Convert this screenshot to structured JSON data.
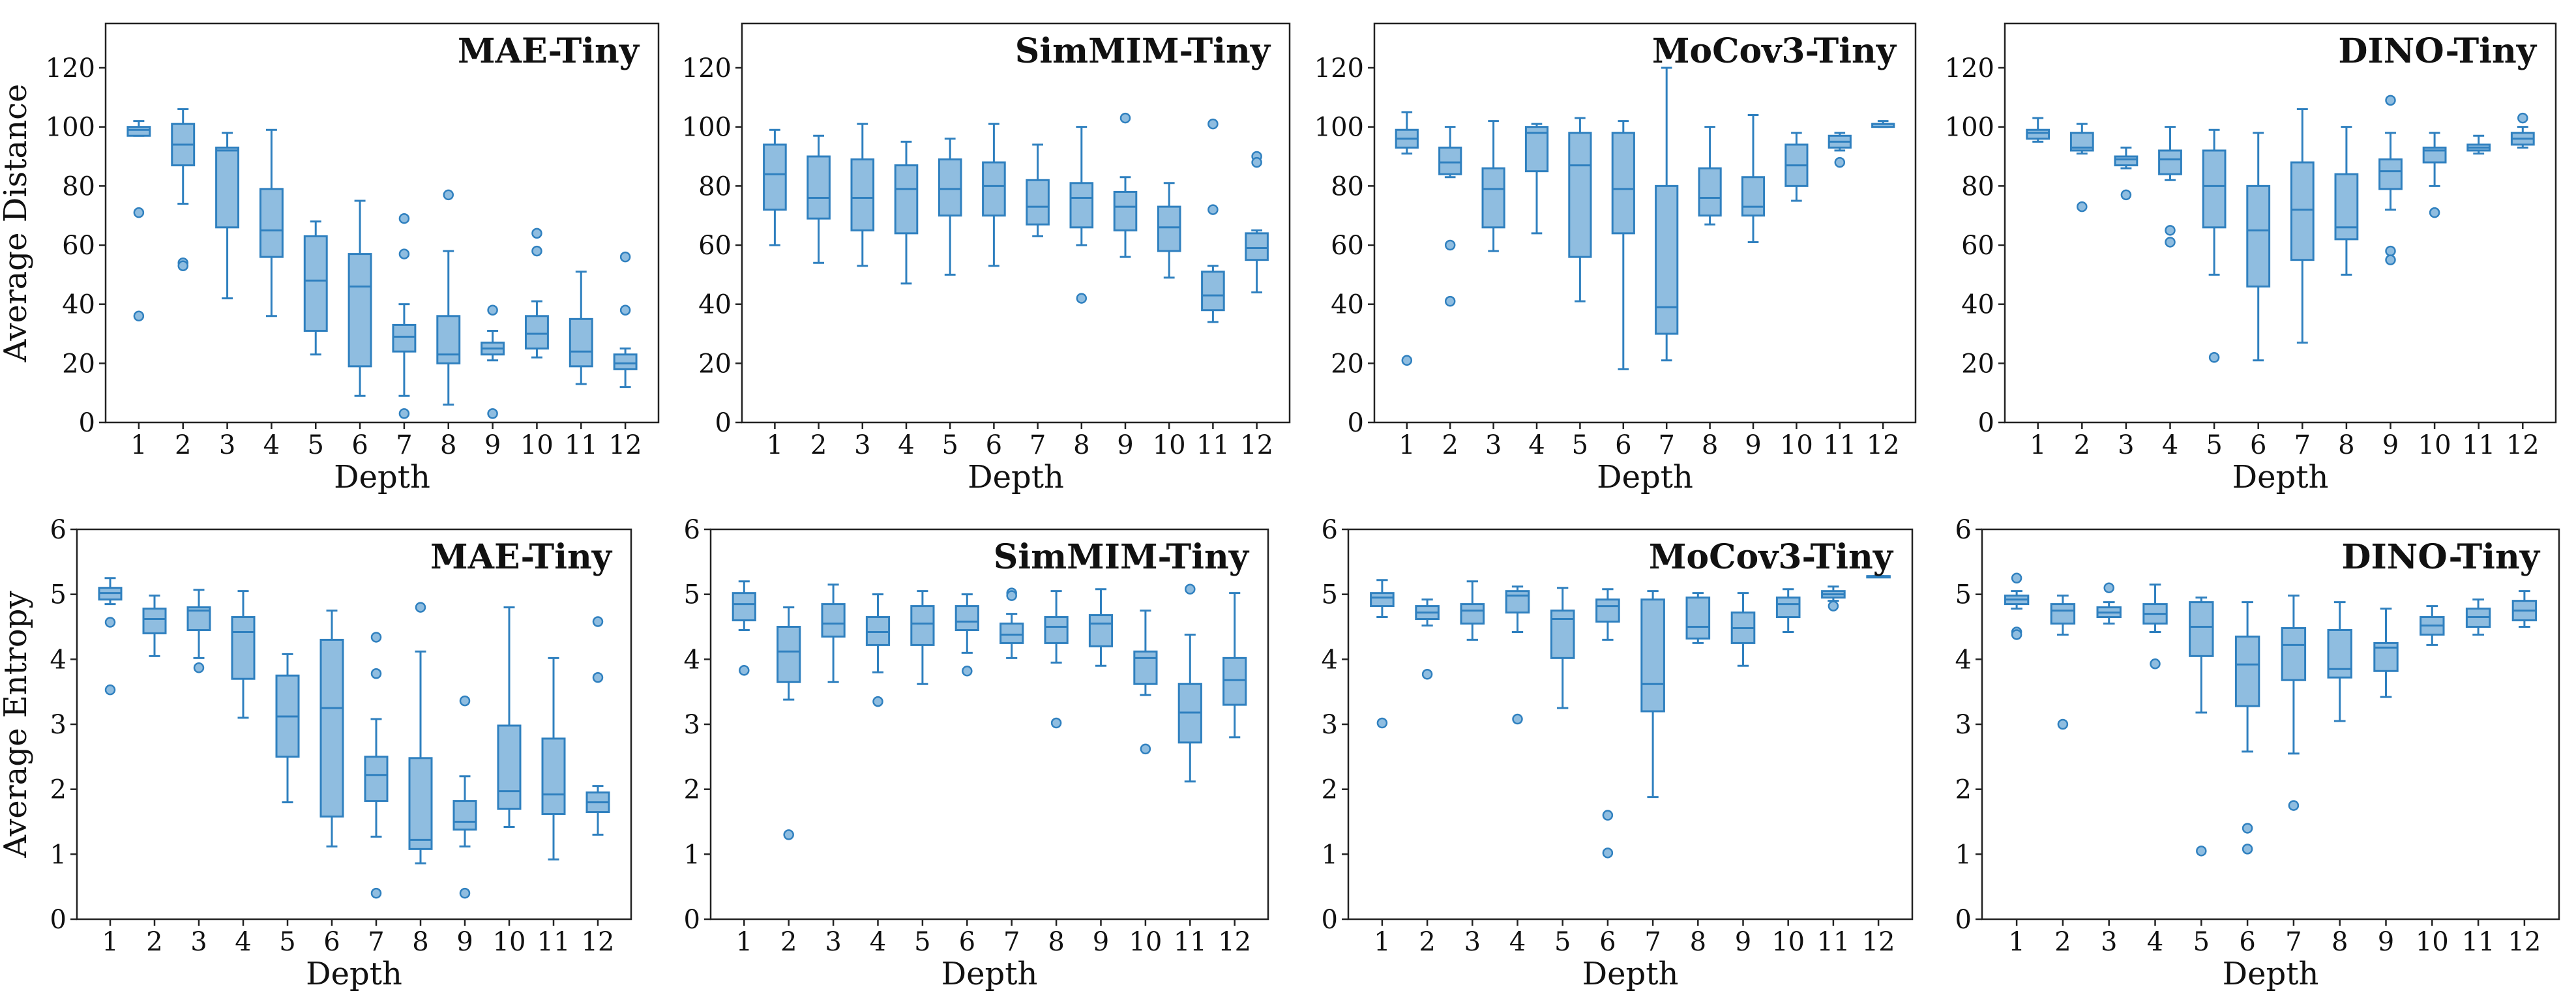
{
  "colors": {
    "box_fill": "#8fbde0",
    "box_edge": "#2f80bf",
    "flier_fill": "#8fbde0"
  },
  "chart_data": [
    {
      "type": "box",
      "title": "MAE-Tiny",
      "xlabel": "Depth",
      "ylabel": "Average Distance",
      "ylim": [
        0,
        135
      ],
      "yticks": [
        0,
        20,
        40,
        60,
        80,
        100,
        120
      ],
      "categories": [
        "1",
        "2",
        "3",
        "4",
        "5",
        "6",
        "7",
        "8",
        "9",
        "10",
        "11",
        "12"
      ],
      "boxes": [
        {
          "q1": 97,
          "med": 99,
          "q3": 100,
          "lo": 97,
          "hi": 102,
          "fliers": [
            71,
            36
          ]
        },
        {
          "q1": 87,
          "med": 94,
          "q3": 101,
          "lo": 74,
          "hi": 106,
          "fliers": [
            54,
            53
          ]
        },
        {
          "q1": 66,
          "med": 92,
          "q3": 93,
          "lo": 42,
          "hi": 98,
          "fliers": []
        },
        {
          "q1": 56,
          "med": 65,
          "q3": 79,
          "lo": 36,
          "hi": 99,
          "fliers": []
        },
        {
          "q1": 31,
          "med": 48,
          "q3": 63,
          "lo": 23,
          "hi": 68,
          "fliers": []
        },
        {
          "q1": 19,
          "med": 46,
          "q3": 57,
          "lo": 9,
          "hi": 75,
          "fliers": []
        },
        {
          "q1": 24,
          "med": 29,
          "q3": 33,
          "lo": 9,
          "hi": 40,
          "fliers": [
            69,
            57,
            3
          ]
        },
        {
          "q1": 20,
          "med": 23,
          "q3": 36,
          "lo": 6,
          "hi": 58,
          "fliers": [
            77
          ]
        },
        {
          "q1": 23,
          "med": 25,
          "q3": 27,
          "lo": 21,
          "hi": 31,
          "fliers": [
            38,
            3
          ]
        },
        {
          "q1": 25,
          "med": 30,
          "q3": 36,
          "lo": 22,
          "hi": 41,
          "fliers": [
            64,
            58
          ]
        },
        {
          "q1": 19,
          "med": 24,
          "q3": 35,
          "lo": 13,
          "hi": 51,
          "fliers": []
        },
        {
          "q1": 18,
          "med": 20,
          "q3": 23,
          "lo": 12,
          "hi": 25,
          "fliers": [
            56,
            38
          ]
        }
      ]
    },
    {
      "type": "box",
      "title": "SimMIM-Tiny",
      "xlabel": "Depth",
      "ylabel": "",
      "ylim": [
        0,
        135
      ],
      "yticks": [
        0,
        20,
        40,
        60,
        80,
        100,
        120
      ],
      "categories": [
        "1",
        "2",
        "3",
        "4",
        "5",
        "6",
        "7",
        "8",
        "9",
        "10",
        "11",
        "12"
      ],
      "boxes": [
        {
          "q1": 72,
          "med": 84,
          "q3": 94,
          "lo": 60,
          "hi": 99,
          "fliers": []
        },
        {
          "q1": 69,
          "med": 76,
          "q3": 90,
          "lo": 54,
          "hi": 97,
          "fliers": []
        },
        {
          "q1": 65,
          "med": 76,
          "q3": 89,
          "lo": 53,
          "hi": 101,
          "fliers": []
        },
        {
          "q1": 64,
          "med": 79,
          "q3": 87,
          "lo": 47,
          "hi": 95,
          "fliers": []
        },
        {
          "q1": 70,
          "med": 79,
          "q3": 89,
          "lo": 50,
          "hi": 96,
          "fliers": []
        },
        {
          "q1": 70,
          "med": 80,
          "q3": 88,
          "lo": 53,
          "hi": 101,
          "fliers": []
        },
        {
          "q1": 67,
          "med": 73,
          "q3": 82,
          "lo": 63,
          "hi": 94,
          "fliers": []
        },
        {
          "q1": 66,
          "med": 76,
          "q3": 81,
          "lo": 60,
          "hi": 100,
          "fliers": [
            42
          ]
        },
        {
          "q1": 65,
          "med": 73,
          "q3": 78,
          "lo": 56,
          "hi": 83,
          "fliers": [
            103
          ]
        },
        {
          "q1": 58,
          "med": 66,
          "q3": 73,
          "lo": 49,
          "hi": 81,
          "fliers": []
        },
        {
          "q1": 38,
          "med": 43,
          "q3": 51,
          "lo": 34,
          "hi": 53,
          "fliers": [
            101,
            72
          ]
        },
        {
          "q1": 55,
          "med": 59,
          "q3": 64,
          "lo": 44,
          "hi": 65,
          "fliers": [
            90,
            88
          ]
        }
      ]
    },
    {
      "type": "box",
      "title": "MoCov3-Tiny",
      "xlabel": "Depth",
      "ylabel": "",
      "ylim": [
        0,
        135
      ],
      "yticks": [
        0,
        20,
        40,
        60,
        80,
        100,
        120
      ],
      "categories": [
        "1",
        "2",
        "3",
        "4",
        "5",
        "6",
        "7",
        "8",
        "9",
        "10",
        "11",
        "12"
      ],
      "boxes": [
        {
          "q1": 93,
          "med": 96,
          "q3": 99,
          "lo": 91,
          "hi": 105,
          "fliers": [
            21
          ]
        },
        {
          "q1": 84,
          "med": 88,
          "q3": 93,
          "lo": 83,
          "hi": 100,
          "fliers": [
            60,
            41
          ]
        },
        {
          "q1": 66,
          "med": 79,
          "q3": 86,
          "lo": 58,
          "hi": 102,
          "fliers": []
        },
        {
          "q1": 85,
          "med": 98,
          "q3": 100,
          "lo": 64,
          "hi": 101,
          "fliers": []
        },
        {
          "q1": 56,
          "med": 87,
          "q3": 98,
          "lo": 41,
          "hi": 103,
          "fliers": []
        },
        {
          "q1": 64,
          "med": 79,
          "q3": 98,
          "lo": 18,
          "hi": 102,
          "fliers": []
        },
        {
          "q1": 30,
          "med": 39,
          "q3": 80,
          "lo": 21,
          "hi": 120,
          "fliers": []
        },
        {
          "q1": 70,
          "med": 76,
          "q3": 86,
          "lo": 67,
          "hi": 100,
          "fliers": []
        },
        {
          "q1": 70,
          "med": 73,
          "q3": 83,
          "lo": 61,
          "hi": 104,
          "fliers": []
        },
        {
          "q1": 80,
          "med": 87,
          "q3": 94,
          "lo": 75,
          "hi": 98,
          "fliers": []
        },
        {
          "q1": 93,
          "med": 95,
          "q3": 97,
          "lo": 92,
          "hi": 98,
          "fliers": [
            88
          ]
        },
        {
          "q1": 100,
          "med": 101,
          "q3": 101,
          "lo": 100,
          "hi": 102,
          "fliers": []
        }
      ]
    },
    {
      "type": "box",
      "title": "DINO-Tiny",
      "xlabel": "Depth",
      "ylabel": "",
      "ylim": [
        0,
        135
      ],
      "yticks": [
        0,
        20,
        40,
        60,
        80,
        100,
        120
      ],
      "categories": [
        "1",
        "2",
        "3",
        "4",
        "5",
        "6",
        "7",
        "8",
        "9",
        "10",
        "11",
        "12"
      ],
      "boxes": [
        {
          "q1": 96,
          "med": 98,
          "q3": 99,
          "lo": 95,
          "hi": 103,
          "fliers": []
        },
        {
          "q1": 92,
          "med": 93,
          "q3": 98,
          "lo": 91,
          "hi": 101,
          "fliers": [
            73
          ]
        },
        {
          "q1": 87,
          "med": 89,
          "q3": 90,
          "lo": 86,
          "hi": 93,
          "fliers": [
            77
          ]
        },
        {
          "q1": 84,
          "med": 89,
          "q3": 92,
          "lo": 82,
          "hi": 100,
          "fliers": [
            65,
            61
          ]
        },
        {
          "q1": 66,
          "med": 80,
          "q3": 92,
          "lo": 50,
          "hi": 99,
          "fliers": [
            22
          ]
        },
        {
          "q1": 46,
          "med": 65,
          "q3": 80,
          "lo": 21,
          "hi": 98,
          "fliers": []
        },
        {
          "q1": 55,
          "med": 72,
          "q3": 88,
          "lo": 27,
          "hi": 106,
          "fliers": []
        },
        {
          "q1": 62,
          "med": 66,
          "q3": 84,
          "lo": 50,
          "hi": 100,
          "fliers": []
        },
        {
          "q1": 79,
          "med": 85,
          "q3": 89,
          "lo": 72,
          "hi": 98,
          "fliers": [
            109,
            58,
            55
          ]
        },
        {
          "q1": 88,
          "med": 92,
          "q3": 93,
          "lo": 80,
          "hi": 98,
          "fliers": [
            71
          ]
        },
        {
          "q1": 92,
          "med": 93,
          "q3": 94,
          "lo": 91,
          "hi": 97,
          "fliers": []
        },
        {
          "q1": 94,
          "med": 96,
          "q3": 98,
          "lo": 93,
          "hi": 100,
          "fliers": [
            103
          ]
        }
      ]
    },
    {
      "type": "box",
      "title": "MAE-Tiny",
      "xlabel": "Depth",
      "ylabel": "Average Entropy",
      "ylim": [
        0,
        6
      ],
      "yticks": [
        0,
        1,
        2,
        3,
        4,
        5,
        6
      ],
      "categories": [
        "1",
        "2",
        "3",
        "4",
        "5",
        "6",
        "7",
        "8",
        "9",
        "10",
        "11",
        "12"
      ],
      "boxes": [
        {
          "q1": 4.92,
          "med": 5.02,
          "q3": 5.1,
          "lo": 4.85,
          "hi": 5.25,
          "fliers": [
            4.57,
            3.53
          ]
        },
        {
          "q1": 4.4,
          "med": 4.62,
          "q3": 4.78,
          "lo": 4.05,
          "hi": 4.98,
          "fliers": []
        },
        {
          "q1": 4.45,
          "med": 4.75,
          "q3": 4.8,
          "lo": 4.02,
          "hi": 5.07,
          "fliers": [
            3.87
          ]
        },
        {
          "q1": 3.7,
          "med": 4.42,
          "q3": 4.65,
          "lo": 3.1,
          "hi": 5.05,
          "fliers": []
        },
        {
          "q1": 2.5,
          "med": 3.12,
          "q3": 3.75,
          "lo": 1.8,
          "hi": 4.08,
          "fliers": []
        },
        {
          "q1": 1.58,
          "med": 3.25,
          "q3": 4.3,
          "lo": 1.12,
          "hi": 4.75,
          "fliers": []
        },
        {
          "q1": 1.82,
          "med": 2.22,
          "q3": 2.5,
          "lo": 1.27,
          "hi": 3.08,
          "fliers": [
            4.34,
            3.78,
            0.4
          ]
        },
        {
          "q1": 1.08,
          "med": 1.22,
          "q3": 2.48,
          "lo": 0.86,
          "hi": 4.12,
          "fliers": [
            4.8
          ]
        },
        {
          "q1": 1.38,
          "med": 1.5,
          "q3": 1.82,
          "lo": 1.12,
          "hi": 2.2,
          "fliers": [
            3.36,
            0.4
          ]
        },
        {
          "q1": 1.7,
          "med": 1.97,
          "q3": 2.98,
          "lo": 1.42,
          "hi": 4.8,
          "fliers": []
        },
        {
          "q1": 1.62,
          "med": 1.92,
          "q3": 2.78,
          "lo": 0.92,
          "hi": 4.02,
          "fliers": []
        },
        {
          "q1": 1.65,
          "med": 1.8,
          "q3": 1.95,
          "lo": 1.3,
          "hi": 2.05,
          "fliers": [
            4.58,
            3.72
          ]
        }
      ]
    },
    {
      "type": "box",
      "title": "SimMIM-Tiny",
      "xlabel": "Depth",
      "ylabel": "",
      "ylim": [
        0,
        6
      ],
      "yticks": [
        0,
        1,
        2,
        3,
        4,
        5,
        6
      ],
      "categories": [
        "1",
        "2",
        "3",
        "4",
        "5",
        "6",
        "7",
        "8",
        "9",
        "10",
        "11",
        "12"
      ],
      "boxes": [
        {
          "q1": 4.6,
          "med": 4.85,
          "q3": 5.02,
          "lo": 4.45,
          "hi": 5.2,
          "fliers": [
            3.83
          ]
        },
        {
          "q1": 3.65,
          "med": 4.12,
          "q3": 4.5,
          "lo": 3.38,
          "hi": 4.8,
          "fliers": [
            1.3
          ]
        },
        {
          "q1": 4.35,
          "med": 4.55,
          "q3": 4.85,
          "lo": 3.65,
          "hi": 5.15,
          "fliers": []
        },
        {
          "q1": 4.22,
          "med": 4.42,
          "q3": 4.65,
          "lo": 3.8,
          "hi": 5.0,
          "fliers": [
            3.35
          ]
        },
        {
          "q1": 4.22,
          "med": 4.55,
          "q3": 4.82,
          "lo": 3.62,
          "hi": 5.05,
          "fliers": []
        },
        {
          "q1": 4.45,
          "med": 4.58,
          "q3": 4.82,
          "lo": 4.1,
          "hi": 5.0,
          "fliers": [
            3.82
          ]
        },
        {
          "q1": 4.25,
          "med": 4.38,
          "q3": 4.55,
          "lo": 4.02,
          "hi": 4.7,
          "fliers": [
            5.02,
            4.98
          ]
        },
        {
          "q1": 4.25,
          "med": 4.5,
          "q3": 4.65,
          "lo": 3.95,
          "hi": 5.05,
          "fliers": [
            3.02
          ]
        },
        {
          "q1": 4.2,
          "med": 4.55,
          "q3": 4.68,
          "lo": 3.9,
          "hi": 5.08,
          "fliers": []
        },
        {
          "q1": 3.62,
          "med": 4.02,
          "q3": 4.12,
          "lo": 3.45,
          "hi": 4.75,
          "fliers": [
            2.62
          ]
        },
        {
          "q1": 2.72,
          "med": 3.18,
          "q3": 3.62,
          "lo": 2.12,
          "hi": 4.38,
          "fliers": [
            5.08
          ]
        },
        {
          "q1": 3.3,
          "med": 3.68,
          "q3": 4.02,
          "lo": 2.8,
          "hi": 5.02,
          "fliers": []
        }
      ]
    },
    {
      "type": "box",
      "title": "MoCov3-Tiny",
      "xlabel": "Depth",
      "ylabel": "",
      "ylim": [
        0,
        6
      ],
      "yticks": [
        0,
        1,
        2,
        3,
        4,
        5,
        6
      ],
      "categories": [
        "1",
        "2",
        "3",
        "4",
        "5",
        "6",
        "7",
        "8",
        "9",
        "10",
        "11",
        "12"
      ],
      "boxes": [
        {
          "q1": 4.82,
          "med": 4.95,
          "q3": 5.02,
          "lo": 4.65,
          "hi": 5.22,
          "fliers": [
            3.02
          ]
        },
        {
          "q1": 4.62,
          "med": 4.72,
          "q3": 4.82,
          "lo": 4.52,
          "hi": 4.92,
          "fliers": [
            3.77
          ]
        },
        {
          "q1": 4.55,
          "med": 4.75,
          "q3": 4.85,
          "lo": 4.3,
          "hi": 5.2,
          "fliers": []
        },
        {
          "q1": 4.72,
          "med": 4.98,
          "q3": 5.05,
          "lo": 4.42,
          "hi": 5.12,
          "fliers": [
            3.08
          ]
        },
        {
          "q1": 4.02,
          "med": 4.62,
          "q3": 4.75,
          "lo": 3.25,
          "hi": 5.1,
          "fliers": []
        },
        {
          "q1": 4.58,
          "med": 4.82,
          "q3": 4.92,
          "lo": 4.3,
          "hi": 5.08,
          "fliers": [
            1.6,
            1.02
          ]
        },
        {
          "q1": 3.2,
          "med": 3.62,
          "q3": 4.92,
          "lo": 1.88,
          "hi": 5.05,
          "fliers": []
        },
        {
          "q1": 4.32,
          "med": 4.5,
          "q3": 4.95,
          "lo": 4.25,
          "hi": 5.02,
          "fliers": []
        },
        {
          "q1": 4.25,
          "med": 4.48,
          "q3": 4.72,
          "lo": 3.9,
          "hi": 5.02,
          "fliers": []
        },
        {
          "q1": 4.65,
          "med": 4.85,
          "q3": 4.95,
          "lo": 4.42,
          "hi": 5.08,
          "fliers": []
        },
        {
          "q1": 4.95,
          "med": 5.0,
          "q3": 5.05,
          "lo": 4.9,
          "hi": 5.12,
          "fliers": [
            4.82
          ]
        },
        {
          "q1": 5.28,
          "med": 5.28,
          "q3": 5.28,
          "lo": 5.28,
          "hi": 5.28,
          "fliers": []
        }
      ]
    },
    {
      "type": "box",
      "title": "DINO-Tiny",
      "xlabel": "Depth",
      "ylabel": "",
      "ylim": [
        0,
        6
      ],
      "yticks": [
        0,
        1,
        2,
        3,
        4,
        5,
        6
      ],
      "categories": [
        "1",
        "2",
        "3",
        "4",
        "5",
        "6",
        "7",
        "8",
        "9",
        "10",
        "11",
        "12"
      ],
      "boxes": [
        {
          "q1": 4.85,
          "med": 4.92,
          "q3": 4.98,
          "lo": 4.78,
          "hi": 5.05,
          "fliers": [
            5.25,
            4.42,
            4.38
          ]
        },
        {
          "q1": 4.55,
          "med": 4.75,
          "q3": 4.85,
          "lo": 4.38,
          "hi": 4.98,
          "fliers": [
            3.0
          ]
        },
        {
          "q1": 4.65,
          "med": 4.72,
          "q3": 4.8,
          "lo": 4.55,
          "hi": 4.88,
          "fliers": [
            5.1
          ]
        },
        {
          "q1": 4.55,
          "med": 4.7,
          "q3": 4.85,
          "lo": 4.42,
          "hi": 5.15,
          "fliers": [
            3.93
          ]
        },
        {
          "q1": 4.05,
          "med": 4.5,
          "q3": 4.88,
          "lo": 3.18,
          "hi": 4.95,
          "fliers": [
            1.05
          ]
        },
        {
          "q1": 3.28,
          "med": 3.92,
          "q3": 4.35,
          "lo": 2.58,
          "hi": 4.88,
          "fliers": [
            1.4,
            1.08
          ]
        },
        {
          "q1": 3.68,
          "med": 4.22,
          "q3": 4.48,
          "lo": 2.55,
          "hi": 4.98,
          "fliers": [
            1.75
          ]
        },
        {
          "q1": 3.72,
          "med": 3.85,
          "q3": 4.45,
          "lo": 3.05,
          "hi": 4.88,
          "fliers": []
        },
        {
          "q1": 3.82,
          "med": 4.18,
          "q3": 4.25,
          "lo": 3.42,
          "hi": 4.78,
          "fliers": []
        },
        {
          "q1": 4.38,
          "med": 4.52,
          "q3": 4.65,
          "lo": 4.22,
          "hi": 4.82,
          "fliers": []
        },
        {
          "q1": 4.5,
          "med": 4.65,
          "q3": 4.78,
          "lo": 4.38,
          "hi": 4.92,
          "fliers": []
        },
        {
          "q1": 4.6,
          "med": 4.75,
          "q3": 4.9,
          "lo": 4.5,
          "hi": 5.05,
          "fliers": []
        }
      ]
    }
  ]
}
